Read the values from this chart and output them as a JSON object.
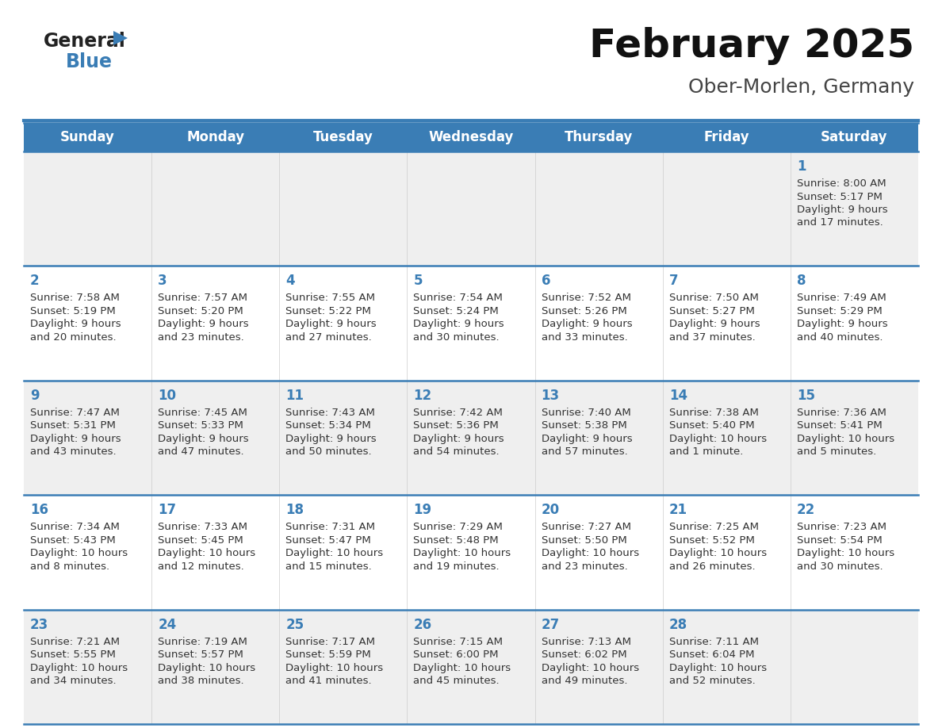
{
  "title": "February 2025",
  "subtitle": "Ober-Morlen, Germany",
  "days_of_week": [
    "Sunday",
    "Monday",
    "Tuesday",
    "Wednesday",
    "Thursday",
    "Friday",
    "Saturday"
  ],
  "header_bg": "#3A7DB5",
  "header_text": "#FFFFFF",
  "row_bg_odd": "#EFEFEF",
  "row_bg_even": "#FFFFFF",
  "separator_color": "#3A7DB5",
  "day_number_color": "#3A7DB5",
  "text_color": "#333333",
  "title_color": "#111111",
  "subtitle_color": "#444444",
  "logo_general_color": "#222222",
  "logo_blue_color": "#3A7DB5",
  "logo_triangle_color": "#3A7DB5",
  "calendar_data": [
    [
      null,
      null,
      null,
      null,
      null,
      null,
      {
        "day": 1,
        "sunrise": "8:00 AM",
        "sunset": "5:17 PM",
        "daylight": "9 hours",
        "daylight2": "and 17 minutes."
      }
    ],
    [
      {
        "day": 2,
        "sunrise": "7:58 AM",
        "sunset": "5:19 PM",
        "daylight": "9 hours",
        "daylight2": "and 20 minutes."
      },
      {
        "day": 3,
        "sunrise": "7:57 AM",
        "sunset": "5:20 PM",
        "daylight": "9 hours",
        "daylight2": "and 23 minutes."
      },
      {
        "day": 4,
        "sunrise": "7:55 AM",
        "sunset": "5:22 PM",
        "daylight": "9 hours",
        "daylight2": "and 27 minutes."
      },
      {
        "day": 5,
        "sunrise": "7:54 AM",
        "sunset": "5:24 PM",
        "daylight": "9 hours",
        "daylight2": "and 30 minutes."
      },
      {
        "day": 6,
        "sunrise": "7:52 AM",
        "sunset": "5:26 PM",
        "daylight": "9 hours",
        "daylight2": "and 33 minutes."
      },
      {
        "day": 7,
        "sunrise": "7:50 AM",
        "sunset": "5:27 PM",
        "daylight": "9 hours",
        "daylight2": "and 37 minutes."
      },
      {
        "day": 8,
        "sunrise": "7:49 AM",
        "sunset": "5:29 PM",
        "daylight": "9 hours",
        "daylight2": "and 40 minutes."
      }
    ],
    [
      {
        "day": 9,
        "sunrise": "7:47 AM",
        "sunset": "5:31 PM",
        "daylight": "9 hours",
        "daylight2": "and 43 minutes."
      },
      {
        "day": 10,
        "sunrise": "7:45 AM",
        "sunset": "5:33 PM",
        "daylight": "9 hours",
        "daylight2": "and 47 minutes."
      },
      {
        "day": 11,
        "sunrise": "7:43 AM",
        "sunset": "5:34 PM",
        "daylight": "9 hours",
        "daylight2": "and 50 minutes."
      },
      {
        "day": 12,
        "sunrise": "7:42 AM",
        "sunset": "5:36 PM",
        "daylight": "9 hours",
        "daylight2": "and 54 minutes."
      },
      {
        "day": 13,
        "sunrise": "7:40 AM",
        "sunset": "5:38 PM",
        "daylight": "9 hours",
        "daylight2": "and 57 minutes."
      },
      {
        "day": 14,
        "sunrise": "7:38 AM",
        "sunset": "5:40 PM",
        "daylight": "10 hours",
        "daylight2": "and 1 minute."
      },
      {
        "day": 15,
        "sunrise": "7:36 AM",
        "sunset": "5:41 PM",
        "daylight": "10 hours",
        "daylight2": "and 5 minutes."
      }
    ],
    [
      {
        "day": 16,
        "sunrise": "7:34 AM",
        "sunset": "5:43 PM",
        "daylight": "10 hours",
        "daylight2": "and 8 minutes."
      },
      {
        "day": 17,
        "sunrise": "7:33 AM",
        "sunset": "5:45 PM",
        "daylight": "10 hours",
        "daylight2": "and 12 minutes."
      },
      {
        "day": 18,
        "sunrise": "7:31 AM",
        "sunset": "5:47 PM",
        "daylight": "10 hours",
        "daylight2": "and 15 minutes."
      },
      {
        "day": 19,
        "sunrise": "7:29 AM",
        "sunset": "5:48 PM",
        "daylight": "10 hours",
        "daylight2": "and 19 minutes."
      },
      {
        "day": 20,
        "sunrise": "7:27 AM",
        "sunset": "5:50 PM",
        "daylight": "10 hours",
        "daylight2": "and 23 minutes."
      },
      {
        "day": 21,
        "sunrise": "7:25 AM",
        "sunset": "5:52 PM",
        "daylight": "10 hours",
        "daylight2": "and 26 minutes."
      },
      {
        "day": 22,
        "sunrise": "7:23 AM",
        "sunset": "5:54 PM",
        "daylight": "10 hours",
        "daylight2": "and 30 minutes."
      }
    ],
    [
      {
        "day": 23,
        "sunrise": "7:21 AM",
        "sunset": "5:55 PM",
        "daylight": "10 hours",
        "daylight2": "and 34 minutes."
      },
      {
        "day": 24,
        "sunrise": "7:19 AM",
        "sunset": "5:57 PM",
        "daylight": "10 hours",
        "daylight2": "and 38 minutes."
      },
      {
        "day": 25,
        "sunrise": "7:17 AM",
        "sunset": "5:59 PM",
        "daylight": "10 hours",
        "daylight2": "and 41 minutes."
      },
      {
        "day": 26,
        "sunrise": "7:15 AM",
        "sunset": "6:00 PM",
        "daylight": "10 hours",
        "daylight2": "and 45 minutes."
      },
      {
        "day": 27,
        "sunrise": "7:13 AM",
        "sunset": "6:02 PM",
        "daylight": "10 hours",
        "daylight2": "and 49 minutes."
      },
      {
        "day": 28,
        "sunrise": "7:11 AM",
        "sunset": "6:04 PM",
        "daylight": "10 hours",
        "daylight2": "and 52 minutes."
      },
      null
    ]
  ]
}
